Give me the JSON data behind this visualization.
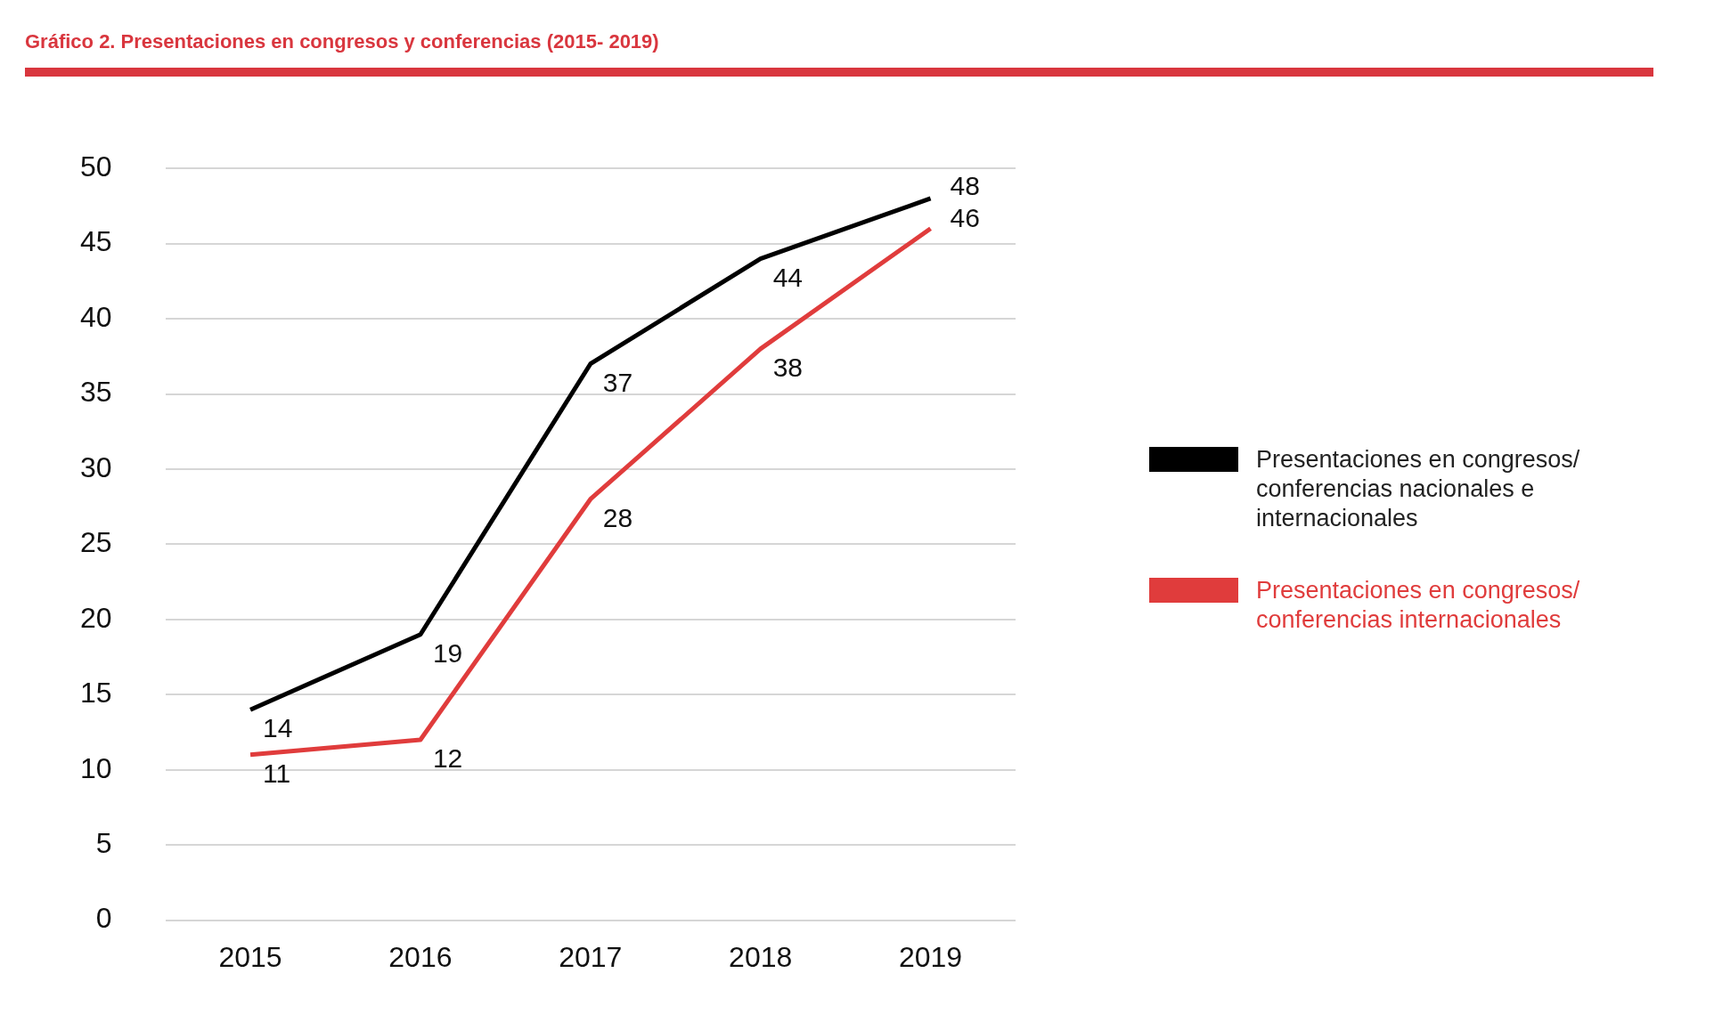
{
  "chart_data": {
    "type": "line",
    "title": "Gráfico 2. Presentaciones en congresos y conferencias (2015- 2019)",
    "categories": [
      "2015",
      "2016",
      "2017",
      "2018",
      "2019"
    ],
    "series": [
      {
        "name": "Presentaciones en congresos/ conferencias nacionales e internacionales",
        "color": "#000000",
        "values": [
          14,
          19,
          37,
          44,
          48
        ]
      },
      {
        "name": "Presentaciones en congresos/ conferencias internacionales",
        "color": "#e03c3c",
        "values": [
          11,
          12,
          28,
          38,
          46
        ]
      }
    ],
    "ylim": [
      0,
      50
    ],
    "yticks": [
      0,
      5,
      10,
      15,
      20,
      25,
      30,
      35,
      40,
      45,
      50
    ],
    "grid": "y",
    "legend": "right",
    "marker": "none",
    "line_style": "solid",
    "data_labels": true
  }
}
